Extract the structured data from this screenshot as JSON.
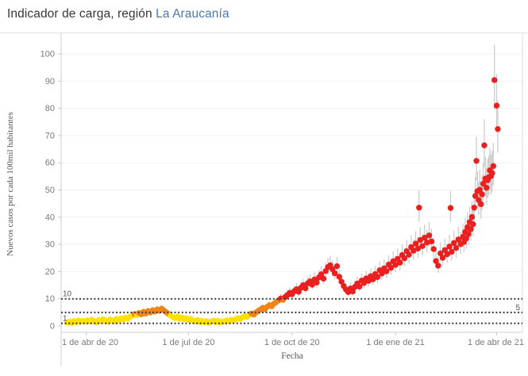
{
  "header": {
    "title_prefix": "Indicador de carga, región ",
    "title_region": "La Araucanía"
  },
  "chart_data": {
    "type": "scatter",
    "title": "Indicador de carga, región La Araucanía",
    "xlabel": "Fecha",
    "ylabel": "Nuevos casos por cada 100mil habitantes",
    "x_tick_labels": [
      "1 de abr de 20",
      "1 de jul de 20",
      "1 de oct de 20",
      "1 de ene de 21",
      "1 de abr de 21"
    ],
    "x_tick_days": [
      17,
      108,
      200,
      292,
      382
    ],
    "x_unit": "days since first plotted point (mid-March 2020)",
    "y_ticks": [
      0,
      10,
      20,
      30,
      40,
      50,
      60,
      70,
      80,
      90,
      100
    ],
    "ylim": [
      0,
      105
    ],
    "grid": "horizontal-faint",
    "legend": "none",
    "reference_lines": [
      {
        "value": 10,
        "label": "10",
        "label_side": "left"
      },
      {
        "value": 5,
        "label": "5",
        "label_side": "right"
      },
      {
        "value": 1,
        "label": "1",
        "label_side": "left"
      }
    ],
    "point_color_rule": {
      "yellow_below": 4.2,
      "orange_below": 9.8,
      "red_at_or_above": 9.8
    },
    "colors": {
      "yellow": "#FFE100",
      "orange": "#F08418",
      "red": "#E9201F",
      "error_bar": "#CCCCCC",
      "reference_line": "#3a3a3a",
      "gridline": "#f2f2f2",
      "border": "#dcdcdc",
      "tick_text": "#7a7a7a",
      "axis_title_text": "#555555",
      "title_accent": "#4e79a7"
    },
    "points": [
      [
        0,
        1.3
      ],
      [
        2,
        1.6
      ],
      [
        4,
        1.1
      ],
      [
        6,
        1.8
      ],
      [
        8,
        1.4
      ],
      [
        10,
        2.0
      ],
      [
        12,
        1.5
      ],
      [
        14,
        1.9
      ],
      [
        16,
        1.6
      ],
      [
        18,
        2.1
      ],
      [
        20,
        1.7
      ],
      [
        22,
        2.3
      ],
      [
        24,
        1.8
      ],
      [
        26,
        1.4
      ],
      [
        28,
        2.2
      ],
      [
        30,
        1.9
      ],
      [
        32,
        2.5
      ],
      [
        34,
        2.0
      ],
      [
        36,
        1.6
      ],
      [
        38,
        2.4
      ],
      [
        40,
        2.1
      ],
      [
        42,
        1.7
      ],
      [
        44,
        2.6
      ],
      [
        46,
        2.2
      ],
      [
        48,
        2.8
      ],
      [
        50,
        2.4
      ],
      [
        52,
        3.1
      ],
      [
        54,
        2.7
      ],
      [
        56,
        3.4
      ],
      [
        58,
        3.9
      ],
      [
        60,
        4.4
      ],
      [
        62,
        4.0
      ],
      [
        64,
        4.8
      ],
      [
        66,
        4.3
      ],
      [
        68,
        5.2
      ],
      [
        70,
        4.6
      ],
      [
        72,
        5.5
      ],
      [
        74,
        5.0
      ],
      [
        76,
        5.8
      ],
      [
        78,
        5.3
      ],
      [
        80,
        6.1
      ],
      [
        82,
        5.6
      ],
      [
        84,
        6.4
      ],
      [
        86,
        5.8
      ],
      [
        88,
        5.1
      ],
      [
        90,
        4.5
      ],
      [
        92,
        3.9
      ],
      [
        94,
        3.3
      ],
      [
        96,
        2.9
      ],
      [
        98,
        3.5
      ],
      [
        100,
        2.7
      ],
      [
        102,
        3.2
      ],
      [
        104,
        2.5
      ],
      [
        106,
        2.9
      ],
      [
        108,
        2.3
      ],
      [
        110,
        2.6
      ],
      [
        112,
        2.0
      ],
      [
        114,
        1.7
      ],
      [
        116,
        2.2
      ],
      [
        118,
        1.5
      ],
      [
        120,
        1.9
      ],
      [
        122,
        1.4
      ],
      [
        124,
        1.8
      ],
      [
        126,
        1.2
      ],
      [
        128,
        1.6
      ],
      [
        130,
        2.0
      ],
      [
        132,
        1.5
      ],
      [
        134,
        1.9
      ],
      [
        136,
        1.3
      ],
      [
        138,
        1.7
      ],
      [
        140,
        1.6
      ],
      [
        142,
        2.1
      ],
      [
        144,
        1.8
      ],
      [
        146,
        2.3
      ],
      [
        148,
        2.0
      ],
      [
        150,
        2.5
      ],
      [
        152,
        2.9
      ],
      [
        154,
        2.6
      ],
      [
        156,
        3.2
      ],
      [
        158,
        3.7
      ],
      [
        160,
        3.3
      ],
      [
        162,
        4.1
      ],
      [
        164,
        4.6
      ],
      [
        166,
        4.2
      ],
      [
        168,
        5.0
      ],
      [
        170,
        5.5
      ],
      [
        172,
        6.1
      ],
      [
        174,
        6.7
      ],
      [
        176,
        6.2
      ],
      [
        178,
        7.1
      ],
      [
        180,
        7.7
      ],
      [
        182,
        7.3
      ],
      [
        184,
        8.2
      ],
      [
        186,
        8.8
      ],
      [
        188,
        9.4
      ],
      [
        190,
        10.1
      ],
      [
        192,
        9.6
      ],
      [
        194,
        10.7
      ],
      [
        196,
        11.4
      ],
      [
        198,
        12.2
      ],
      [
        200,
        11.7
      ],
      [
        202,
        12.8
      ],
      [
        204,
        13.5
      ],
      [
        206,
        12.6
      ],
      [
        208,
        14.1
      ],
      [
        210,
        15.0
      ],
      [
        212,
        13.9
      ],
      [
        214,
        15.7
      ],
      [
        216,
        16.4
      ],
      [
        218,
        15.2
      ],
      [
        220,
        17.1
      ],
      [
        222,
        16.0
      ],
      [
        224,
        17.9
      ],
      [
        226,
        19.0
      ],
      [
        228,
        17.4
      ],
      [
        230,
        20.2
      ],
      [
        232,
        21.7
      ],
      [
        234,
        22.3
      ],
      [
        236,
        20.9
      ],
      [
        238,
        19.4
      ],
      [
        240,
        22.0
      ],
      [
        242,
        18.1
      ],
      [
        244,
        16.3
      ],
      [
        246,
        14.7
      ],
      [
        248,
        13.4
      ],
      [
        250,
        12.5
      ],
      [
        252,
        13.8
      ],
      [
        254,
        12.7
      ],
      [
        256,
        14.4
      ],
      [
        258,
        15.6
      ],
      [
        260,
        14.5
      ],
      [
        262,
        16.7
      ],
      [
        264,
        15.8
      ],
      [
        266,
        17.5
      ],
      [
        268,
        16.6
      ],
      [
        270,
        18.3
      ],
      [
        272,
        17.2
      ],
      [
        274,
        19.1
      ],
      [
        276,
        18.0
      ],
      [
        278,
        20.5
      ],
      [
        280,
        19.3
      ],
      [
        282,
        21.2
      ],
      [
        284,
        20.1
      ],
      [
        286,
        22.6
      ],
      [
        288,
        21.4
      ],
      [
        290,
        23.8
      ],
      [
        292,
        22.5
      ],
      [
        294,
        24.7
      ],
      [
        296,
        23.3
      ],
      [
        298,
        26.1
      ],
      [
        300,
        24.9
      ],
      [
        302,
        27.5
      ],
      [
        304,
        26.2
      ],
      [
        306,
        29.0
      ],
      [
        308,
        27.7
      ],
      [
        310,
        30.3
      ],
      [
        312,
        28.5
      ],
      [
        313,
        43.5
      ],
      [
        314,
        31.6
      ],
      [
        316,
        29.4
      ],
      [
        318,
        32.5
      ],
      [
        320,
        30.7
      ],
      [
        322,
        33.3
      ],
      [
        324,
        31.1
      ],
      [
        326,
        28.3
      ],
      [
        328,
        23.9
      ],
      [
        330,
        22.2
      ],
      [
        332,
        26.7
      ],
      [
        334,
        25.1
      ],
      [
        336,
        27.9
      ],
      [
        338,
        26.4
      ],
      [
        340,
        29.2
      ],
      [
        341,
        43.4
      ],
      [
        342,
        27.3
      ],
      [
        344,
        30.5
      ],
      [
        346,
        28.7
      ],
      [
        348,
        31.8
      ],
      [
        350,
        30.1
      ],
      [
        352,
        32.8
      ],
      [
        353,
        30.9
      ],
      [
        354,
        34.6
      ],
      [
        355,
        32.2
      ],
      [
        356,
        36.3
      ],
      [
        357,
        33.8
      ],
      [
        358,
        38.2
      ],
      [
        359,
        35.6
      ],
      [
        360,
        40.1
      ],
      [
        361,
        37.4
      ],
      [
        362,
        43.5
      ],
      [
        363,
        47.8
      ],
      [
        364,
        60.7
      ],
      [
        365,
        49.6
      ],
      [
        366,
        46.3
      ],
      [
        367,
        50.1
      ],
      [
        368,
        44.8
      ],
      [
        369,
        48.4
      ],
      [
        370,
        52.3
      ],
      [
        371,
        66.4
      ],
      [
        372,
        54.2
      ],
      [
        373,
        50.8
      ],
      [
        374,
        53.6
      ],
      [
        375,
        54.7
      ],
      [
        376,
        57.2
      ],
      [
        377,
        55.1
      ],
      [
        378,
        56.2
      ],
      [
        379,
        58.8
      ],
      [
        380,
        90.4
      ],
      [
        382,
        81.0
      ],
      [
        383,
        72.4
      ]
    ]
  }
}
